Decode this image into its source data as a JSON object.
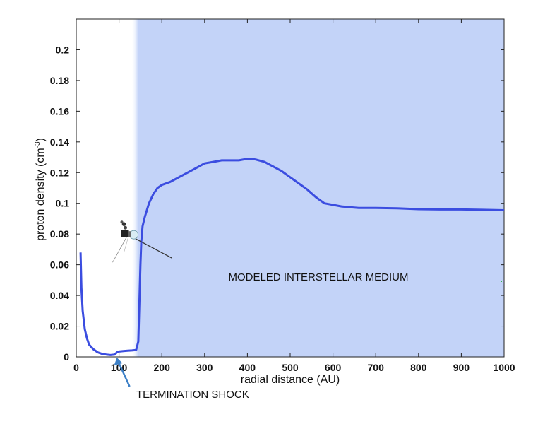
{
  "chart_data": {
    "type": "line",
    "xlabel": "radial distance (AU)",
    "ylabel_main": "proton density (cm",
    "ylabel_sup": "-3",
    "ylabel_close": ")",
    "xlim": [
      0,
      1000
    ],
    "ylim": [
      0,
      0.22
    ],
    "x_ticks": [
      0,
      100,
      200,
      300,
      400,
      500,
      600,
      700,
      800,
      900,
      1000
    ],
    "y_ticks": [
      0,
      0.02,
      0.04,
      0.06,
      0.08,
      0.1,
      0.12,
      0.14,
      0.16,
      0.18,
      0.2
    ],
    "grid": false,
    "shaded_region": {
      "x_start": 145,
      "x_end": 1000,
      "color": "#c3d3f8"
    },
    "series": [
      {
        "color": "#3b4de0",
        "x": [
          10,
          12,
          15,
          20,
          25,
          30,
          40,
          50,
          60,
          70,
          80,
          90,
          95,
          100,
          110,
          120,
          130,
          140,
          145,
          148,
          150,
          152,
          155,
          160,
          170,
          180,
          190,
          200,
          220,
          240,
          260,
          280,
          300,
          320,
          340,
          360,
          380,
          400,
          410,
          420,
          440,
          460,
          480,
          500,
          520,
          540,
          560,
          580,
          600,
          620,
          640,
          660,
          680,
          700,
          750,
          800,
          850,
          900,
          950,
          1000
        ],
        "y": [
          0.068,
          0.045,
          0.03,
          0.018,
          0.012,
          0.008,
          0.005,
          0.003,
          0.002,
          0.0015,
          0.0012,
          0.0015,
          0.003,
          0.0035,
          0.0038,
          0.004,
          0.0042,
          0.0045,
          0.01,
          0.04,
          0.06,
          0.075,
          0.085,
          0.091,
          0.1,
          0.106,
          0.11,
          0.112,
          0.114,
          0.117,
          0.12,
          0.123,
          0.126,
          0.127,
          0.128,
          0.128,
          0.128,
          0.129,
          0.129,
          0.1285,
          0.127,
          0.124,
          0.121,
          0.117,
          0.113,
          0.109,
          0.104,
          0.1,
          0.099,
          0.098,
          0.0975,
          0.097,
          0.097,
          0.097,
          0.0968,
          0.0962,
          0.096,
          0.096,
          0.0958,
          0.0955
        ]
      }
    ],
    "annotations": {
      "medium_label": "MODELED INTERSTELLAR MEDIUM",
      "shock_label": "TERMINATION SHOCK",
      "shock_x": 95,
      "probe_x": 118,
      "probe_y": 0.08
    }
  },
  "colors": {
    "line": "#3b4de0",
    "shade": "#c3d3f8",
    "arrow": "#3d80c7"
  },
  "icons": {
    "probe": "voyager-spacecraft-icon",
    "arrow": "up-arrow-icon"
  }
}
